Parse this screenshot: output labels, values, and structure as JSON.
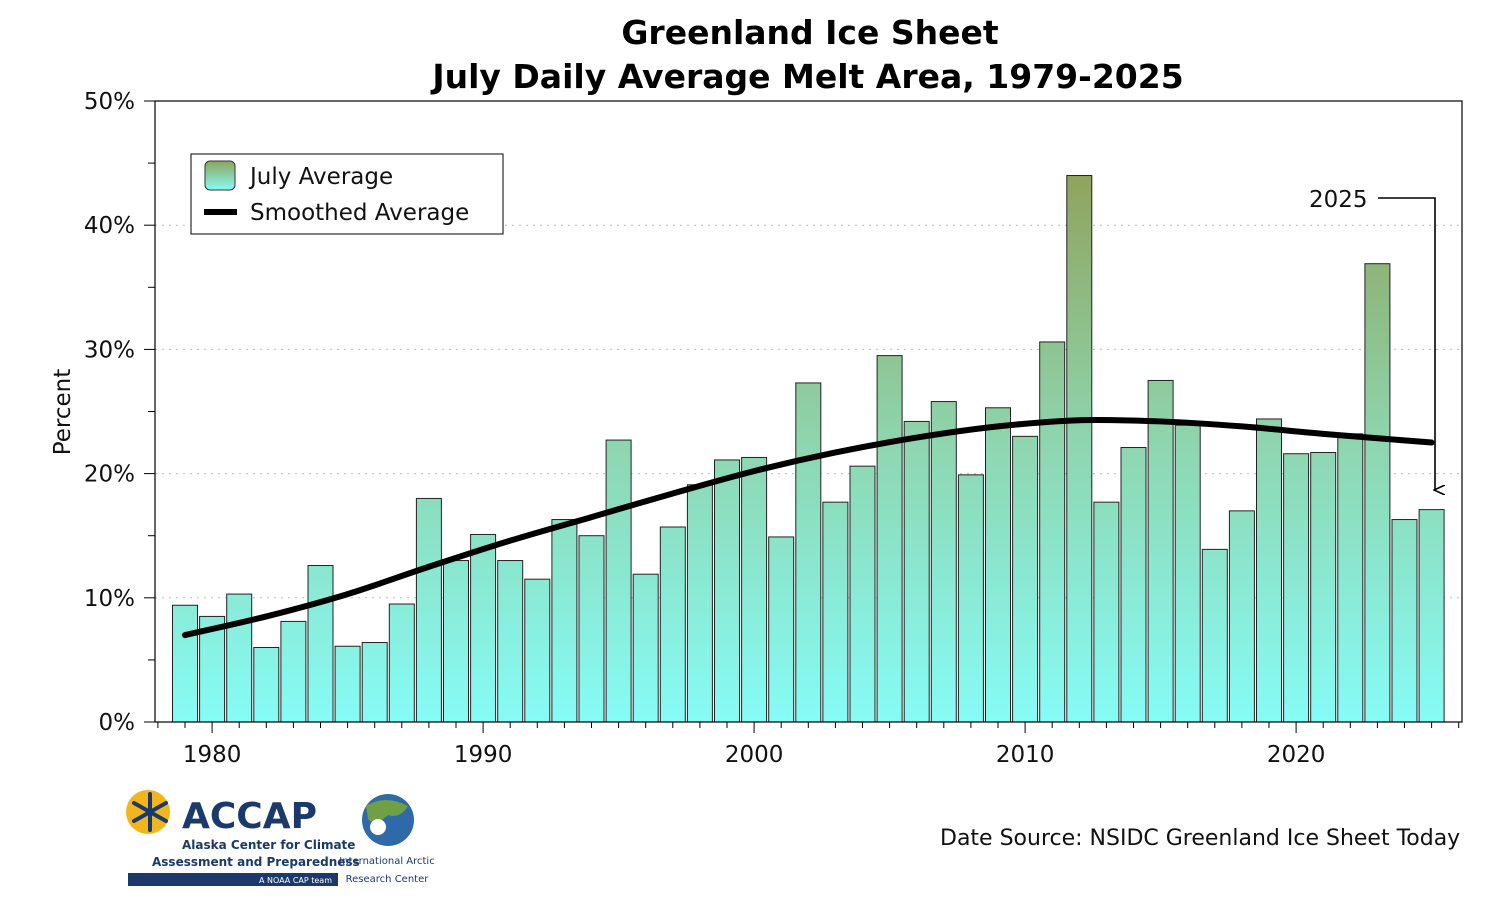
{
  "chart_data": {
    "type": "bar",
    "title": "Greenland Ice Sheet",
    "subtitle": "July Daily Average Melt Area, 1979-2025",
    "xlabel": "",
    "ylabel": "Percent",
    "ylim": [
      0,
      50
    ],
    "xlim": [
      1978,
      2026
    ],
    "yticks": [
      "0%",
      "10%",
      "20%",
      "30%",
      "40%",
      "50%"
    ],
    "ytick_values": [
      0,
      10,
      20,
      30,
      40,
      50
    ],
    "xticks": [
      "1980",
      "1990",
      "2000",
      "2010",
      "2020"
    ],
    "xtick_values": [
      1980,
      1990,
      2000,
      2010,
      2020
    ],
    "grid": "horizontal dotted",
    "legend_position": "top-left",
    "legend": [
      "July Average",
      "Smoothed Average"
    ],
    "x": [
      1979,
      1980,
      1981,
      1982,
      1983,
      1984,
      1985,
      1986,
      1987,
      1988,
      1989,
      1990,
      1991,
      1992,
      1993,
      1994,
      1995,
      1996,
      1997,
      1998,
      1999,
      2000,
      2001,
      2002,
      2003,
      2004,
      2005,
      2006,
      2007,
      2008,
      2009,
      2010,
      2011,
      2012,
      2013,
      2014,
      2015,
      2016,
      2017,
      2018,
      2019,
      2020,
      2021,
      2022,
      2023,
      2024,
      2025
    ],
    "series": [
      {
        "name": "July Average",
        "type": "bar",
        "values": [
          9.4,
          8.5,
          10.3,
          6.0,
          8.1,
          12.6,
          6.1,
          6.4,
          9.5,
          18.0,
          13.0,
          15.1,
          13.0,
          11.5,
          16.3,
          15.0,
          22.7,
          11.9,
          15.7,
          19.1,
          21.1,
          21.3,
          14.9,
          27.3,
          17.7,
          20.6,
          29.5,
          24.2,
          25.8,
          19.9,
          25.3,
          23.0,
          30.6,
          44.0,
          17.7,
          22.1,
          27.5,
          23.9,
          13.9,
          17.0,
          24.4,
          21.6,
          21.7,
          23.2,
          36.9,
          16.3,
          17.1
        ]
      },
      {
        "name": "Smoothed Average",
        "type": "line",
        "x": [
          1979,
          1982,
          1985,
          1988,
          1991,
          1994,
          1997,
          2000,
          2003,
          2006,
          2009,
          2012,
          2015,
          2018,
          2021,
          2025
        ],
        "values": [
          7.0,
          8.5,
          10.3,
          12.5,
          14.6,
          16.5,
          18.4,
          20.2,
          21.7,
          22.9,
          23.8,
          24.3,
          24.2,
          23.8,
          23.2,
          22.5
        ]
      }
    ],
    "annotation": {
      "label": "2025",
      "target_year": 2025
    },
    "colors": {
      "bar_bottom": "#86fcf6",
      "bar_mid": "#8ed6b0",
      "bar_top": "#8fa35c",
      "line": "#000000"
    }
  },
  "source": "Date Source: NSIDC Greenland Ice Sheet Today",
  "logos": {
    "accap": "ACCAP",
    "accap_line1": "Alaska Center for Climate",
    "accap_line2": "Assessment and Preparedness",
    "accap_tag": "A NOAA CAP team",
    "iarc_line1": "International Arctic",
    "iarc_line2": "Research Center"
  }
}
